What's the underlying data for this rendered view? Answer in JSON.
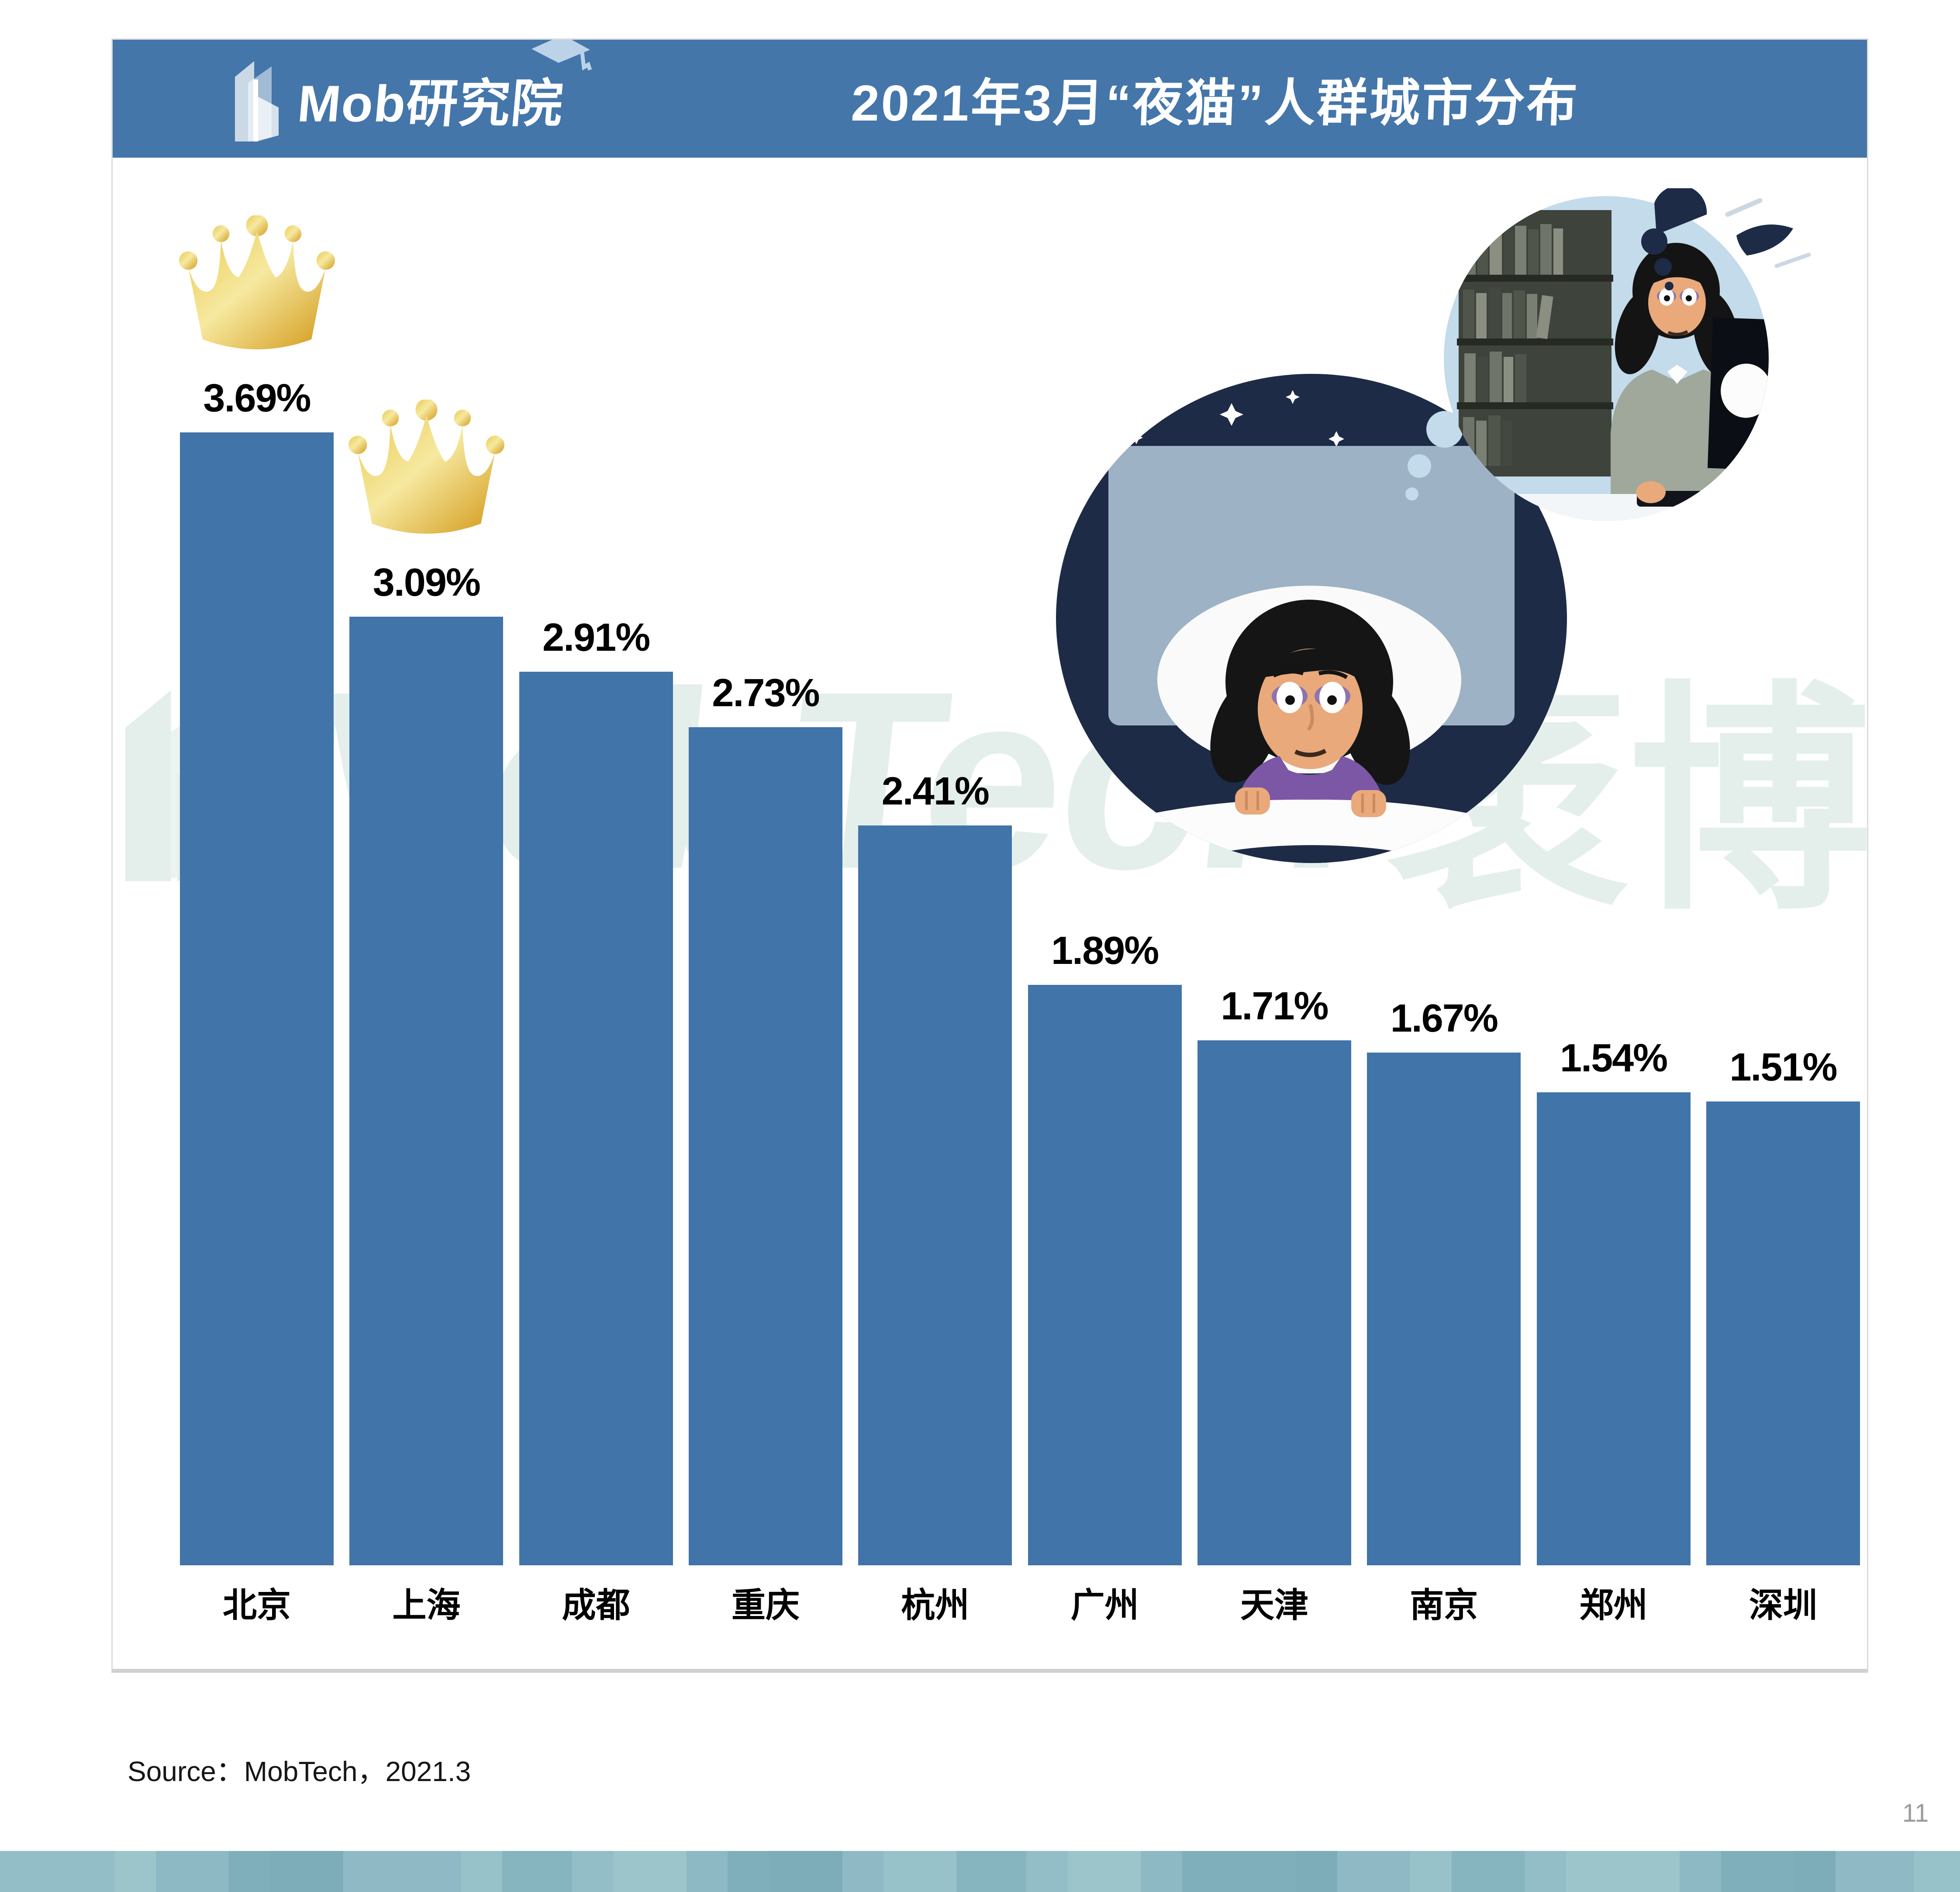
{
  "header": {
    "logo_text": "Mob研究院",
    "title": "2021年3月“夜猫”人群城市分布",
    "header_color": "#4476AA"
  },
  "chart_data": {
    "type": "bar",
    "title": "2021年3月“夜猫”人群城市分布",
    "unit": "%",
    "categories": [
      "北京",
      "上海",
      "成都",
      "重庆",
      "杭州",
      "广州",
      "天津",
      "南京",
      "郑州",
      "深圳"
    ],
    "values": [
      3.69,
      3.09,
      2.91,
      2.73,
      2.41,
      1.89,
      1.71,
      1.67,
      1.54,
      1.51
    ],
    "value_labels": [
      "3.69%",
      "3.09%",
      "2.91%",
      "2.73%",
      "2.41%",
      "1.89%",
      "1.71%",
      "1.67%",
      "1.54%",
      "1.51%"
    ],
    "crowned_indices": [
      0,
      1
    ],
    "bar_color": "#4174A8",
    "ylim": [
      0,
      4
    ],
    "grid": false,
    "legend": "none",
    "crown_gold_light": "#F6E9A0",
    "crown_gold_mid": "#E9C94F",
    "crown_gold_dark": "#D39A1B"
  },
  "watermark": {
    "text_latin": "MobTech",
    "text_cn": "袤博",
    "color": "#E4EFEC"
  },
  "illustration": {
    "name": "insomnia-night-owl-scene",
    "night_color": "#1D2B47",
    "bubble_color": "#C3DBEB",
    "headboard_color": "#9DB2C4",
    "skin_color": "#E9A97B",
    "pajama_color": "#7C57A5",
    "jacket_color": "#9FA89A"
  },
  "source": {
    "label": "Source：MobTech，2021.3"
  },
  "page_number": "11",
  "footer_strip": {
    "band_widths": [
      262,
      95,
      167,
      95,
      167,
      269,
      95,
      160,
      95,
      167,
      94,
      95,
      168,
      94,
      167,
      160,
      95,
      167,
      95,
      260,
      95,
      167,
      95,
      167,
      95,
      260,
      95,
      167,
      95,
      180,
      105
    ],
    "band_colors": [
      "#93BEC7",
      "#9CC5CB",
      "#8CB9C4",
      "#7FAFBB",
      "#7CADB9",
      "#8FBAC5",
      "#98C2C9",
      "#86B4BF"
    ]
  }
}
